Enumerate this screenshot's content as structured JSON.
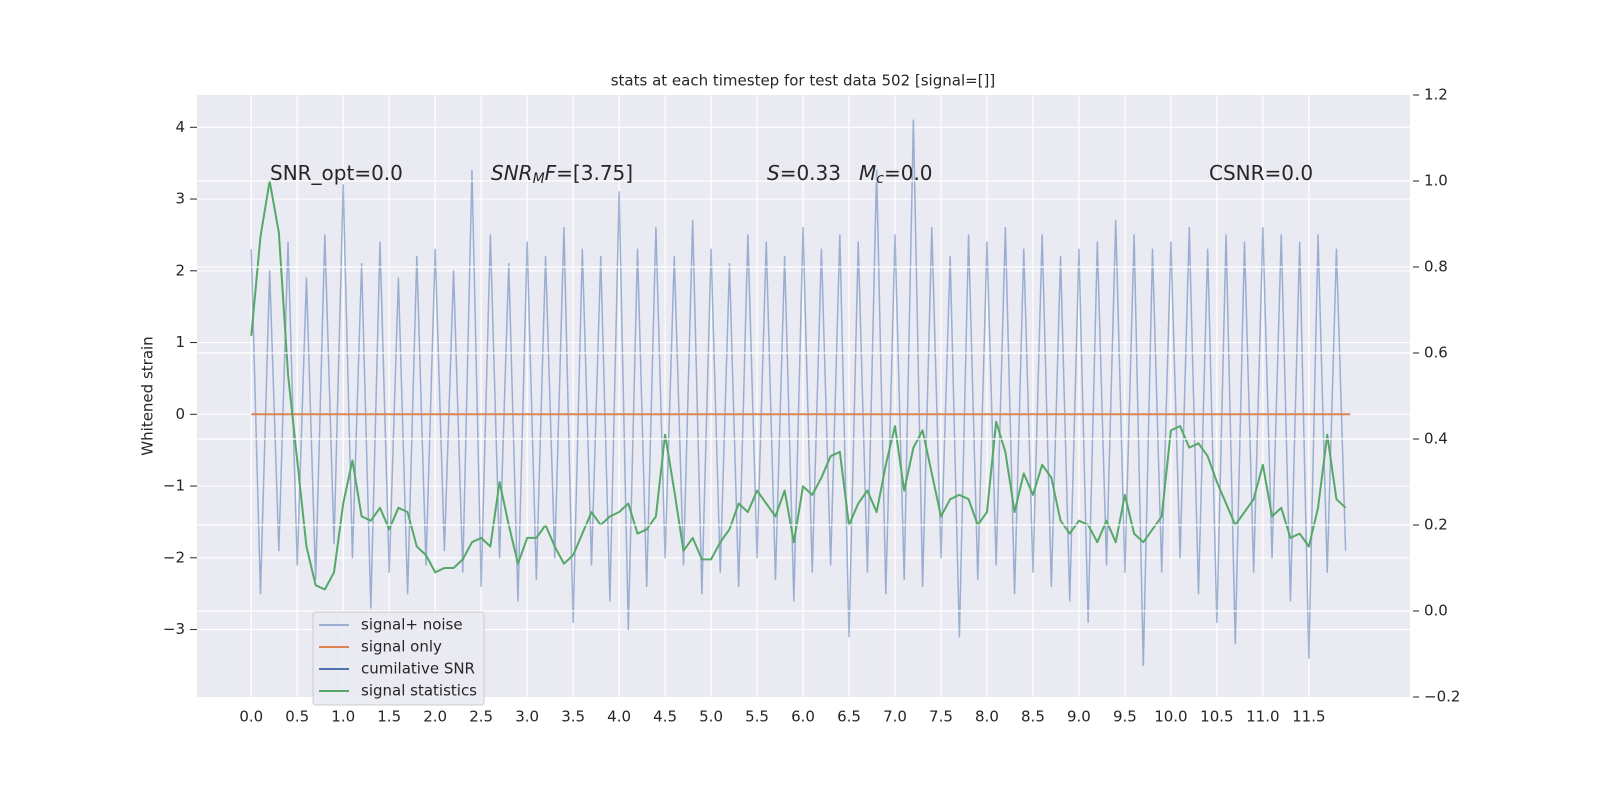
{
  "chart_data": {
    "type": "line",
    "title": "stats at each timestep for test data 502 [signal=[]]",
    "ylabel": "Whitened strain",
    "grid": true,
    "legend": "lower left",
    "x": [
      0.0,
      0.1,
      0.2,
      0.3,
      0.4,
      0.5,
      0.6,
      0.7,
      0.8,
      0.9,
      1.0,
      1.1,
      1.2,
      1.3,
      1.4,
      1.5,
      1.6,
      1.7,
      1.8,
      1.9,
      2.0,
      2.1,
      2.2,
      2.3,
      2.4,
      2.5,
      2.6,
      2.7,
      2.8,
      2.9,
      3.0,
      3.1,
      3.2,
      3.3,
      3.4,
      3.5,
      3.6,
      3.7,
      3.8,
      3.9,
      4.0,
      4.1,
      4.2,
      4.3,
      4.4,
      4.5,
      4.6,
      4.7,
      4.8,
      4.9,
      5.0,
      5.1,
      5.2,
      5.3,
      5.4,
      5.5,
      5.6,
      5.7,
      5.8,
      5.9,
      6.0,
      6.1,
      6.2,
      6.3,
      6.4,
      6.5,
      6.6,
      6.7,
      6.8,
      6.9,
      7.0,
      7.1,
      7.2,
      7.3,
      7.4,
      7.5,
      7.6,
      7.7,
      7.8,
      7.9,
      8.0,
      8.1,
      8.2,
      8.3,
      8.4,
      8.5,
      8.6,
      8.7,
      8.8,
      8.9,
      9.0,
      9.1,
      9.2,
      9.3,
      9.4,
      9.5,
      9.6,
      9.7,
      9.8,
      9.9,
      10.0,
      10.1,
      10.2,
      10.3,
      10.4,
      10.5,
      10.6,
      10.7,
      10.8,
      10.9,
      11.0,
      11.1,
      11.2,
      11.3,
      11.4,
      11.5,
      11.6,
      11.7,
      11.8,
      11.9
    ],
    "xlim": [
      -0.59,
      12.6
    ],
    "xticks": [
      {
        "value": 0,
        "label": "0.0"
      },
      {
        "value": 0.5,
        "label": "0.5"
      },
      {
        "value": 1,
        "label": "1.0"
      },
      {
        "value": 1.5,
        "label": "1.5"
      },
      {
        "value": 2,
        "label": "2.0"
      },
      {
        "value": 2.5,
        "label": "2.5"
      },
      {
        "value": 3,
        "label": "3.0"
      },
      {
        "value": 3.5,
        "label": "3.5"
      },
      {
        "value": 4,
        "label": "4.0"
      },
      {
        "value": 4.5,
        "label": "4.5"
      },
      {
        "value": 5,
        "label": "5.0"
      },
      {
        "value": 5.5,
        "label": "5.5"
      },
      {
        "value": 6,
        "label": "6.0"
      },
      {
        "value": 6.5,
        "label": "6.5"
      },
      {
        "value": 7,
        "label": "7.0"
      },
      {
        "value": 7.5,
        "label": "7.5"
      },
      {
        "value": 8,
        "label": "8.0"
      },
      {
        "value": 8.5,
        "label": "8.5"
      },
      {
        "value": 9,
        "label": "9.0"
      },
      {
        "value": 9.5,
        "label": "9.5"
      },
      {
        "value": 10,
        "label": "10.0"
      },
      {
        "value": 10.5,
        "label": "10.5"
      },
      {
        "value": 11,
        "label": "11.0"
      },
      {
        "value": 11.5,
        "label": "11.5"
      }
    ],
    "ylim": [
      -3.94,
      4.45
    ],
    "yticks": [
      {
        "value": -3,
        "label": "−3"
      },
      {
        "value": -2,
        "label": "−2"
      },
      {
        "value": -1,
        "label": "−1"
      },
      0,
      1,
      2,
      3,
      4
    ],
    "y2lim": [
      -0.2,
      1.2
    ],
    "y2ticks": [
      {
        "value": -0.2,
        "label": "−0.2"
      },
      {
        "value": 0,
        "label": "0.0"
      },
      {
        "value": 0.2,
        "label": "0.2"
      },
      {
        "value": 0.4,
        "label": "0.4"
      },
      {
        "value": 0.6,
        "label": "0.6"
      },
      {
        "value": 0.8,
        "label": "0.8"
      },
      {
        "value": 1,
        "label": "1.0"
      },
      {
        "value": 1.2,
        "label": "1.2"
      }
    ],
    "series": [
      {
        "name": "signal+ noise",
        "color": "#4c72b0",
        "values": [
          2.3,
          -2.5,
          2.0,
          -1.9,
          2.4,
          -2.1,
          1.9,
          -2.3,
          2.5,
          -1.8,
          3.2,
          -2.0,
          2.1,
          -2.7,
          2.4,
          -2.2,
          1.9,
          -2.5,
          2.2,
          -2.1,
          2.3,
          -1.9,
          2.0,
          -2.2,
          3.4,
          -2.4,
          2.5,
          -2.0,
          2.1,
          -2.6,
          2.4,
          -2.3,
          2.2,
          -2.0,
          2.6,
          -2.9,
          2.3,
          -2.1,
          2.2,
          -2.6,
          3.1,
          -3.0,
          2.3,
          -2.4,
          2.6,
          -2.0,
          2.2,
          -2.1,
          2.7,
          -2.5,
          2.3,
          -2.2,
          2.1,
          -2.4,
          2.5,
          -2.0,
          2.4,
          -2.3,
          2.2,
          -2.6,
          2.6,
          -2.2,
          2.3,
          -2.1,
          2.5,
          -3.1,
          2.4,
          -2.2,
          3.4,
          -2.5,
          2.5,
          -2.3,
          4.1,
          -2.4,
          2.6,
          -2.0,
          2.2,
          -3.1,
          2.5,
          -2.3,
          2.4,
          -2.1,
          2.6,
          -2.5,
          2.3,
          -2.2,
          2.5,
          -2.4,
          2.2,
          -2.6,
          2.3,
          -2.9,
          2.4,
          -2.1,
          2.7,
          -2.2,
          2.5,
          -3.5,
          2.3,
          -2.2,
          2.4,
          -2.0,
          2.6,
          -2.5,
          2.3,
          -2.9,
          2.5,
          -3.2,
          2.4,
          -2.2,
          2.6,
          -2.0,
          2.5,
          -2.6,
          2.4,
          -3.4,
          2.5,
          -2.2,
          2.3,
          -1.9
        ]
      },
      {
        "name": "signal only",
        "color": "#dd8452",
        "x": [
          0.0,
          11.95
        ],
        "values": [
          0,
          0
        ]
      },
      {
        "name": "cumilative SNR",
        "color": "#4c72b0",
        "x": [],
        "values": []
      },
      {
        "name": "signal statistics",
        "color": "#55a868",
        "axis": "y2",
        "values": [
          0.64,
          0.87,
          1.0,
          0.88,
          0.55,
          0.35,
          0.15,
          0.06,
          0.05,
          0.09,
          0.25,
          0.35,
          0.22,
          0.21,
          0.24,
          0.19,
          0.24,
          0.23,
          0.15,
          0.13,
          0.09,
          0.1,
          0.1,
          0.12,
          0.16,
          0.17,
          0.15,
          0.3,
          0.2,
          0.11,
          0.17,
          0.17,
          0.2,
          0.15,
          0.11,
          0.13,
          0.18,
          0.23,
          0.2,
          0.22,
          0.23,
          0.25,
          0.18,
          0.19,
          0.22,
          0.41,
          0.28,
          0.14,
          0.17,
          0.12,
          0.12,
          0.16,
          0.19,
          0.25,
          0.23,
          0.28,
          0.25,
          0.22,
          0.28,
          0.16,
          0.29,
          0.27,
          0.31,
          0.36,
          0.37,
          0.2,
          0.25,
          0.28,
          0.23,
          0.34,
          0.43,
          0.28,
          0.38,
          0.42,
          0.32,
          0.22,
          0.26,
          0.27,
          0.26,
          0.2,
          0.23,
          0.44,
          0.37,
          0.23,
          0.32,
          0.27,
          0.34,
          0.31,
          0.21,
          0.18,
          0.21,
          0.2,
          0.16,
          0.21,
          0.16,
          0.27,
          0.18,
          0.16,
          0.19,
          0.22,
          0.42,
          0.43,
          0.38,
          0.39,
          0.36,
          0.3,
          0.25,
          0.2,
          0.23,
          0.26,
          0.34,
          0.22,
          0.24,
          0.17,
          0.18,
          0.15,
          0.24,
          0.41,
          0.26,
          0.24
        ]
      }
    ],
    "annotations": [
      {
        "parts": [
          {
            "text": "SNR_opt=0.0"
          }
        ]
      },
      {
        "parts": [
          {
            "text": "SNR",
            "italic": true
          },
          {
            "text": "M",
            "italic": true,
            "sub": true
          },
          {
            "text": "F",
            "italic": true
          },
          {
            "text": "=[3.75]"
          }
        ]
      },
      {
        "parts": [
          {
            "text": "S",
            "italic": true
          },
          {
            "text": "=0.33"
          }
        ]
      },
      {
        "parts": [
          {
            "text": "M",
            "italic": true
          },
          {
            "text": "c",
            "italic": true,
            "sub": true
          },
          {
            "text": "=0.0"
          }
        ]
      },
      {
        "parts": [
          {
            "text": "CSNR=0.0"
          }
        ]
      }
    ]
  }
}
